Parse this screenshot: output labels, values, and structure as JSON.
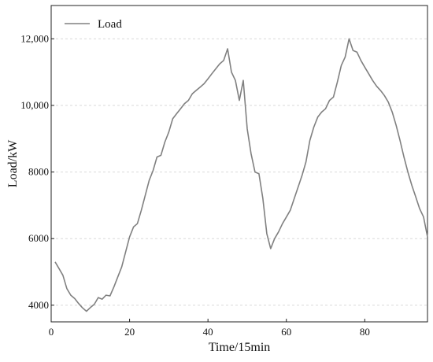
{
  "chart_data": {
    "type": "line",
    "xlabel": "Time/15min",
    "ylabel": "Load/kW",
    "xlim": [
      0,
      96
    ],
    "ylim": [
      3500,
      13000
    ],
    "x_ticks": [
      0,
      20,
      40,
      60,
      80
    ],
    "x_tick_labels": [
      "0",
      "20",
      "40",
      "60",
      "80"
    ],
    "y_ticks": [
      4000,
      6000,
      8000,
      10000,
      12000
    ],
    "y_tick_labels": [
      "4000",
      "6000",
      "8000",
      "10,000",
      "12,000"
    ],
    "grid": "horizontal dashed",
    "legend_position": "top-left",
    "series": [
      {
        "name": "Load",
        "color": "#808080",
        "x": [
          1,
          2,
          3,
          4,
          5,
          6,
          7,
          8,
          9,
          10,
          11,
          12,
          13,
          14,
          15,
          16,
          17,
          18,
          19,
          20,
          21,
          22,
          23,
          24,
          25,
          26,
          27,
          28,
          29,
          30,
          31,
          32,
          33,
          34,
          35,
          36,
          37,
          38,
          39,
          40,
          41,
          42,
          43,
          44,
          45,
          46,
          47,
          48,
          49,
          50,
          51,
          52,
          53,
          54,
          55,
          56,
          57,
          58,
          59,
          60,
          61,
          62,
          63,
          64,
          65,
          66,
          67,
          68,
          69,
          70,
          71,
          72,
          73,
          74,
          75,
          76,
          77,
          78,
          79,
          80,
          81,
          82,
          83,
          84,
          85,
          86,
          87,
          88,
          89,
          90,
          91,
          92,
          93,
          94,
          95,
          96
        ],
        "values": [
          5300,
          5100,
          4900,
          4500,
          4300,
          4200,
          4050,
          3920,
          3820,
          3930,
          4030,
          4230,
          4180,
          4300,
          4280,
          4550,
          4850,
          5150,
          5600,
          6050,
          6350,
          6450,
          6850,
          7300,
          7750,
          8050,
          8450,
          8500,
          8900,
          9200,
          9600,
          9750,
          9900,
          10050,
          10150,
          10350,
          10450,
          10550,
          10650,
          10800,
          10950,
          11100,
          11250,
          11350,
          11700,
          11000,
          10750,
          10150,
          10750,
          9300,
          8550,
          8000,
          7950,
          7200,
          6150,
          5700,
          6000,
          6200,
          6450,
          6650,
          6850,
          7200,
          7550,
          7900,
          8300,
          8950,
          9350,
          9650,
          9800,
          9900,
          10150,
          10250,
          10700,
          11200,
          11450,
          12000,
          11650,
          11600,
          11350,
          11150,
          10950,
          10750,
          10580,
          10450,
          10300,
          10100,
          9800,
          9400,
          8950,
          8450,
          8000,
          7600,
          7250,
          6900,
          6650,
          6050
        ]
      }
    ]
  }
}
